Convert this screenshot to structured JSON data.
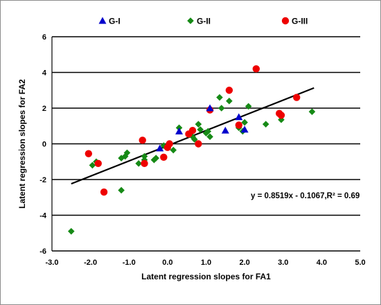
{
  "chart_data": {
    "type": "scatter",
    "title": "",
    "xlabel": "Latent regression slopes for FA1",
    "ylabel": "Latent regression slopes for FA2",
    "xlim": [
      -3.0,
      5.0
    ],
    "ylim": [
      -6,
      6
    ],
    "x_ticks": [
      "-3.0",
      "-2.0",
      "-1.0",
      "0.0",
      "1.0",
      "2.0",
      "3.0",
      "4.0",
      "5.0"
    ],
    "y_ticks": [
      "-6",
      "-4",
      "-2",
      "0",
      "2",
      "4",
      "6"
    ],
    "grid": "horizontal",
    "legend_position": "top",
    "series": [
      {
        "name": "G-I",
        "marker": "triangle",
        "color": "#0000cc",
        "points": [
          [
            -0.2,
            -0.25
          ],
          [
            0.3,
            0.7
          ],
          [
            1.1,
            2.0
          ],
          [
            1.5,
            0.75
          ],
          [
            1.85,
            1.5
          ],
          [
            2.0,
            0.8
          ]
        ]
      },
      {
        "name": "G-II",
        "marker": "diamond",
        "color": "#168a16",
        "points": [
          [
            -2.5,
            -4.9
          ],
          [
            -1.95,
            -1.2
          ],
          [
            -1.85,
            -1.0
          ],
          [
            -1.2,
            -2.6
          ],
          [
            -1.2,
            -0.8
          ],
          [
            -1.1,
            -0.7
          ],
          [
            -1.05,
            -0.5
          ],
          [
            -0.75,
            -1.1
          ],
          [
            -0.6,
            -0.9
          ],
          [
            -0.6,
            -0.7
          ],
          [
            -0.35,
            -0.9
          ],
          [
            -0.3,
            -0.8
          ],
          [
            -0.1,
            -0.1
          ],
          [
            0.15,
            -0.35
          ],
          [
            0.05,
            0.0
          ],
          [
            0.3,
            0.9
          ],
          [
            0.55,
            0.5
          ],
          [
            0.65,
            0.4
          ],
          [
            0.7,
            0.25
          ],
          [
            0.8,
            1.1
          ],
          [
            0.85,
            0.8
          ],
          [
            1.0,
            0.6
          ],
          [
            1.05,
            0.7
          ],
          [
            1.1,
            0.4
          ],
          [
            1.35,
            2.6
          ],
          [
            1.4,
            2.0
          ],
          [
            1.6,
            2.4
          ],
          [
            1.85,
            0.9
          ],
          [
            1.95,
            0.7
          ],
          [
            2.0,
            1.2
          ],
          [
            2.1,
            2.1
          ],
          [
            2.55,
            1.1
          ],
          [
            2.95,
            1.35
          ],
          [
            3.75,
            1.8
          ]
        ]
      },
      {
        "name": "G-III",
        "marker": "circle",
        "color": "#ee0000",
        "points": [
          [
            -2.05,
            -0.55
          ],
          [
            -1.8,
            -1.1
          ],
          [
            -1.65,
            -2.7
          ],
          [
            -0.65,
            0.2
          ],
          [
            -0.6,
            -1.1
          ],
          [
            -0.1,
            -0.75
          ],
          [
            0.0,
            -0.2
          ],
          [
            0.05,
            0.0
          ],
          [
            0.55,
            0.55
          ],
          [
            0.65,
            0.75
          ],
          [
            0.8,
            0.0
          ],
          [
            1.1,
            1.9
          ],
          [
            1.6,
            3.0
          ],
          [
            1.85,
            1.05
          ],
          [
            2.3,
            4.2
          ],
          [
            2.9,
            1.7
          ],
          [
            2.95,
            1.6
          ],
          [
            3.35,
            2.6
          ]
        ]
      }
    ],
    "trendline": {
      "slope": 0.8519,
      "intercept": -0.1067,
      "x_range": [
        -2.5,
        3.8
      ],
      "equation_label": "y = 0.8519x - 0.1067,R² = 0.69"
    }
  }
}
